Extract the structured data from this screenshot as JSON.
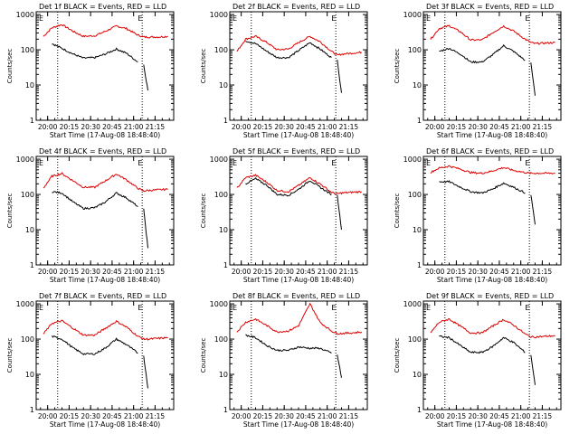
{
  "colors": {
    "events": "#000000",
    "lld": "#dd0000",
    "axis": "#000000",
    "background": "#ffffff"
  },
  "shared": {
    "ylabel": "Counts/sec",
    "xlabel": "Start Time (17-Aug-08 18:48:40)",
    "x_ticks": [
      "20:00",
      "20:15",
      "20:30",
      "20:45",
      "21:00",
      "21:15"
    ],
    "y_ticks": [
      "1",
      "10",
      "100",
      "1000"
    ],
    "top_marker": "E"
  },
  "chart_data": [
    {
      "type": "line",
      "title": "Det 1f BLACK = Events, RED = LLD",
      "ylabel": "Counts/sec",
      "xlabel": "Start Time (17-Aug-08 18:48:40)",
      "y_scale": "log",
      "x": [
        "19:57",
        "20:03",
        "20:10",
        "20:18",
        "20:25",
        "20:33",
        "20:40",
        "20:48",
        "20:55",
        "21:03",
        "21:06",
        "21:07",
        "21:10",
        "21:17",
        "21:24"
      ],
      "series": [
        {
          "values": [
            null,
            150,
            110,
            75,
            58,
            60,
            75,
            105,
            80,
            45,
            null,
            38,
            7,
            null,
            null
          ]
        },
        {
          "values": [
            240,
            420,
            520,
            330,
            240,
            250,
            330,
            470,
            400,
            260,
            240,
            230,
            230,
            230,
            240
          ]
        }
      ]
    },
    {
      "type": "line",
      "title": "Det 2f BLACK = Events, RED = LLD",
      "ylabel": "Counts/sec",
      "xlabel": "Start Time (17-Aug-08 18:48:40)",
      "y_scale": "log",
      "x": [
        "19:57",
        "20:03",
        "20:10",
        "20:18",
        "20:25",
        "20:33",
        "20:40",
        "20:48",
        "20:55",
        "21:03",
        "21:06",
        "21:07",
        "21:10",
        "21:17",
        "21:24"
      ],
      "series": [
        {
          "values": [
            null,
            180,
            150,
            90,
            60,
            60,
            95,
            160,
            105,
            60,
            null,
            50,
            6,
            null,
            null
          ]
        },
        {
          "values": [
            90,
            200,
            240,
            160,
            100,
            105,
            160,
            240,
            170,
            90,
            75,
            70,
            75,
            80,
            85
          ]
        }
      ]
    },
    {
      "type": "line",
      "title": "Det 3f BLACK = Events, RED = LLD",
      "ylabel": "Counts/sec",
      "xlabel": "Start Time (17-Aug-08 18:48:40)",
      "y_scale": "log",
      "x": [
        "19:57",
        "20:03",
        "20:10",
        "20:18",
        "20:25",
        "20:33",
        "20:40",
        "20:48",
        "20:55",
        "21:03",
        "21:06",
        "21:07",
        "21:10",
        "21:17",
        "21:24"
      ],
      "series": [
        {
          "values": [
            null,
            90,
            110,
            75,
            45,
            45,
            70,
            130,
            90,
            50,
            null,
            42,
            5,
            null,
            null
          ]
        },
        {
          "values": [
            200,
            400,
            480,
            320,
            190,
            190,
            300,
            470,
            340,
            200,
            170,
            160,
            150,
            155,
            160
          ]
        }
      ]
    },
    {
      "type": "line",
      "title": "Det 4f BLACK = Events, RED = LLD",
      "ylabel": "Counts/sec",
      "xlabel": "Start Time (17-Aug-08 18:48:40)",
      "y_scale": "log",
      "x": [
        "19:57",
        "20:03",
        "20:10",
        "20:18",
        "20:25",
        "20:33",
        "20:40",
        "20:48",
        "20:55",
        "21:03",
        "21:06",
        "21:07",
        "21:10",
        "21:17",
        "21:24"
      ],
      "series": [
        {
          "values": [
            null,
            120,
            110,
            60,
            40,
            42,
            60,
            110,
            80,
            45,
            null,
            38,
            3,
            null,
            null
          ]
        },
        {
          "values": [
            150,
            330,
            390,
            240,
            160,
            160,
            240,
            380,
            260,
            150,
            130,
            125,
            130,
            135,
            140
          ]
        }
      ]
    },
    {
      "type": "line",
      "title": "Det 5f BLACK = Events, RED = LLD",
      "ylabel": "Counts/sec",
      "xlabel": "Start Time (17-Aug-08 18:48:40)",
      "y_scale": "log",
      "x": [
        "19:57",
        "20:03",
        "20:10",
        "20:18",
        "20:25",
        "20:33",
        "20:40",
        "20:48",
        "20:55",
        "21:03",
        "21:06",
        "21:07",
        "21:10",
        "21:17",
        "21:24"
      ],
      "series": [
        {
          "values": [
            null,
            200,
            280,
            180,
            100,
            95,
            140,
            250,
            160,
            100,
            null,
            95,
            10,
            null,
            null
          ]
        },
        {
          "values": [
            150,
            300,
            350,
            220,
            130,
            120,
            180,
            300,
            200,
            115,
            105,
            105,
            110,
            115,
            120
          ]
        }
      ]
    },
    {
      "type": "line",
      "title": "Det 6f BLACK = Events, RED = LLD",
      "ylabel": "Counts/sec",
      "xlabel": "Start Time (17-Aug-08 18:48:40)",
      "y_scale": "log",
      "x": [
        "19:57",
        "20:03",
        "20:10",
        "20:18",
        "20:25",
        "20:33",
        "20:40",
        "20:48",
        "20:55",
        "21:03",
        "21:06",
        "21:07",
        "21:10",
        "21:17",
        "21:24"
      ],
      "series": [
        {
          "values": [
            null,
            230,
            230,
            160,
            120,
            110,
            140,
            210,
            160,
            110,
            null,
            100,
            14,
            null,
            null
          ]
        },
        {
          "values": [
            420,
            560,
            640,
            520,
            420,
            400,
            460,
            580,
            480,
            420,
            400,
            400,
            400,
            400,
            400
          ]
        }
      ]
    },
    {
      "type": "line",
      "title": "Det 7f BLACK = Events, RED = LLD",
      "ylabel": "Counts/sec",
      "xlabel": "Start Time (17-Aug-08 18:48:40)",
      "y_scale": "log",
      "x": [
        "19:57",
        "20:03",
        "20:10",
        "20:18",
        "20:25",
        "20:33",
        "20:40",
        "20:48",
        "20:55",
        "21:03",
        "21:06",
        "21:07",
        "21:10",
        "21:17",
        "21:24"
      ],
      "series": [
        {
          "values": [
            null,
            120,
            100,
            55,
            38,
            38,
            55,
            100,
            70,
            40,
            null,
            34,
            4,
            null,
            null
          ]
        },
        {
          "values": [
            140,
            280,
            330,
            200,
            130,
            130,
            200,
            320,
            220,
            120,
            105,
            100,
            100,
            105,
            110
          ]
        }
      ]
    },
    {
      "type": "line",
      "title": "Det 8f BLACK = Events, RED = LLD",
      "ylabel": "Counts/sec",
      "xlabel": "Start Time (17-Aug-08 18:48:40)",
      "y_scale": "log",
      "x": [
        "19:57",
        "20:03",
        "20:10",
        "20:18",
        "20:25",
        "20:33",
        "20:40",
        "20:48",
        "20:55",
        "21:03",
        "21:06",
        "21:07",
        "21:10",
        "21:17",
        "21:24"
      ],
      "series": [
        {
          "values": [
            null,
            130,
            110,
            65,
            48,
            48,
            60,
            55,
            55,
            40,
            null,
            36,
            8,
            null,
            null
          ]
        },
        {
          "values": [
            160,
            300,
            370,
            240,
            160,
            170,
            240,
            1000,
            300,
            170,
            150,
            145,
            145,
            150,
            160
          ]
        }
      ]
    },
    {
      "type": "line",
      "title": "Det 9f BLACK = Events, RED = LLD",
      "ylabel": "Counts/sec",
      "xlabel": "Start Time (17-Aug-08 18:48:40)",
      "y_scale": "log",
      "x": [
        "19:57",
        "20:03",
        "20:10",
        "20:18",
        "20:25",
        "20:33",
        "20:40",
        "20:48",
        "20:55",
        "21:03",
        "21:06",
        "21:07",
        "21:10",
        "21:17",
        "21:24"
      ],
      "series": [
        {
          "values": [
            null,
            120,
            110,
            65,
            42,
            42,
            60,
            110,
            80,
            42,
            null,
            36,
            5,
            null,
            null
          ]
        },
        {
          "values": [
            150,
            300,
            370,
            230,
            150,
            150,
            230,
            360,
            250,
            140,
            120,
            115,
            115,
            120,
            125
          ]
        }
      ]
    }
  ]
}
